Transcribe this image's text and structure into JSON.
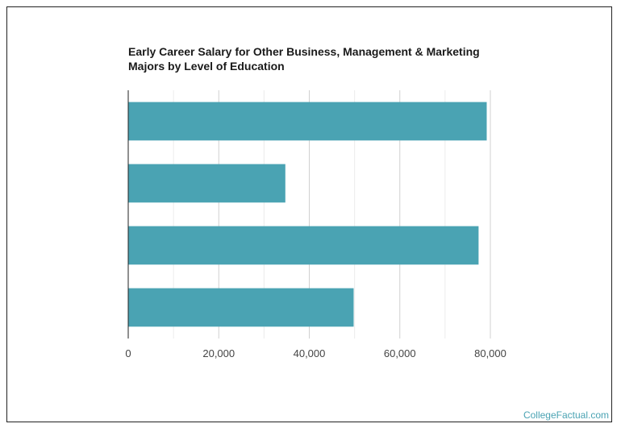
{
  "chart_data": {
    "type": "bar",
    "orientation": "horizontal",
    "title": "Early Career Salary for Other Business, Management & Marketing Majors by Level of Education",
    "categories": [
      "",
      "",
      "",
      ""
    ],
    "values": [
      79200,
      34700,
      77400,
      49800
    ],
    "xlabel": "",
    "ylabel": "",
    "xlim": [
      0,
      80000
    ],
    "x_ticks": [
      0,
      20000,
      40000,
      60000,
      80000
    ],
    "x_tick_labels": [
      "0",
      "20,000",
      "40,000",
      "60,000",
      "80,000"
    ],
    "grid": true,
    "legend": "none",
    "bar_color": "#4aa3b3",
    "grid_major_color": "#d0d0d0",
    "grid_minor_color": "#ececec"
  },
  "footer": {
    "brand": "CollegeFactual.com"
  }
}
